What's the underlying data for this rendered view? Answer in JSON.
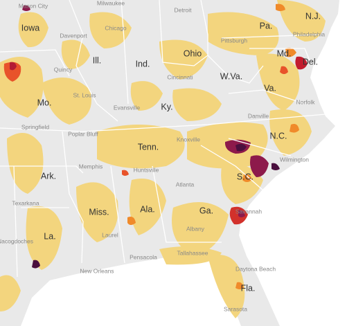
{
  "states": [
    {
      "label": "Iowa"
    },
    {
      "label": "Ill."
    },
    {
      "label": "Ind."
    },
    {
      "label": "Ohio"
    },
    {
      "label": "Pa."
    },
    {
      "label": "N.J."
    },
    {
      "label": "Md."
    },
    {
      "label": "Del."
    },
    {
      "label": "W.Va."
    },
    {
      "label": "Va."
    },
    {
      "label": "Mo."
    },
    {
      "label": "Ky."
    },
    {
      "label": "N.C."
    },
    {
      "label": "Tenn."
    },
    {
      "label": "Ark."
    },
    {
      "label": "S.C."
    },
    {
      "label": "Miss."
    },
    {
      "label": "Ala."
    },
    {
      "label": "Ga."
    },
    {
      "label": "La."
    },
    {
      "label": "Fla."
    }
  ],
  "cities": [
    {
      "label": "Mason City"
    },
    {
      "label": "Milwaukee"
    },
    {
      "label": "Detroit"
    },
    {
      "label": "Davenport"
    },
    {
      "label": "Chicago"
    },
    {
      "label": "Pittsburgh"
    },
    {
      "label": "Philadelphia"
    },
    {
      "label": "Quincy"
    },
    {
      "label": "Cincinnati"
    },
    {
      "label": "St. Louis"
    },
    {
      "label": "Evansville"
    },
    {
      "label": "Norfolk"
    },
    {
      "label": "Springfield"
    },
    {
      "label": "Poplar Bluff"
    },
    {
      "label": "Danville"
    },
    {
      "label": "Knoxville"
    },
    {
      "label": "Memphis"
    },
    {
      "label": "Huntsville"
    },
    {
      "label": "Wilmington"
    },
    {
      "label": "Atlanta"
    },
    {
      "label": "Texarkana"
    },
    {
      "label": "Savannah"
    },
    {
      "label": "Nacogdoches"
    },
    {
      "label": "Laurel"
    },
    {
      "label": "Albany"
    },
    {
      "label": "Tallahassee"
    },
    {
      "label": "Pensacola"
    },
    {
      "label": "New Orleans"
    },
    {
      "label": "Daytona Beach"
    },
    {
      "label": "Sarasota"
    }
  ]
}
